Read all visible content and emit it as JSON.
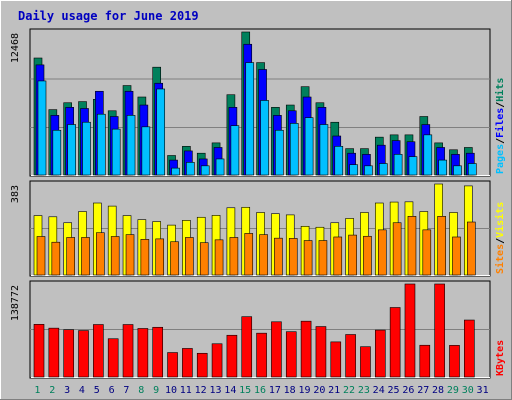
{
  "chart_data": {
    "type": "bar",
    "title": "Daily usage for June 2019",
    "colors": {
      "background": "#c0c0c0",
      "title": "#0000c0",
      "hits": "#00805c",
      "files": "#0000ff",
      "pages": "#00c0ff",
      "visits": "#ffff00",
      "sites": "#ff8000",
      "kbytes": "#ff0000",
      "weekend_day_label": "#00805c",
      "weekday_label": "#000080"
    },
    "categories": [
      "1",
      "2",
      "3",
      "4",
      "5",
      "6",
      "7",
      "8",
      "9",
      "10",
      "11",
      "12",
      "13",
      "14",
      "15",
      "16",
      "17",
      "18",
      "19",
      "20",
      "21",
      "22",
      "23",
      "24",
      "25",
      "26",
      "27",
      "28",
      "29",
      "30",
      "31"
    ],
    "weekend_days": [
      "1",
      "2",
      "8",
      "9",
      "15",
      "16",
      "22",
      "23",
      "29",
      "30"
    ],
    "panels": [
      {
        "id": "traffic",
        "ymax_label": "12468",
        "ylim": [
          0,
          12468
        ],
        "legend": [
          "Pages",
          "/",
          "Files",
          "/",
          "Hits"
        ],
        "series": [
          {
            "name": "Hits",
            "values": [
              10200,
              5700,
              6300,
              6400,
              6600,
              5600,
              7800,
              6800,
              9400,
              1700,
              2500,
              1900,
              2800,
              7000,
              12468,
              9800,
              5900,
              6100,
              7700,
              6300,
              4600,
              2300,
              2300,
              3300,
              3500,
              3500,
              5100,
              2800,
              2200,
              2400
            ]
          },
          {
            "name": "Files",
            "values": [
              9600,
              5200,
              5900,
              5800,
              7300,
              5100,
              7300,
              6100,
              8000,
              1300,
              2100,
              1400,
              2400,
              5900,
              11400,
              9200,
              5200,
              5600,
              6800,
              5900,
              3400,
              1900,
              1800,
              2600,
              3000,
              2900,
              4400,
              2400,
              1800,
              1900
            ]
          },
          {
            "name": "Pages",
            "values": [
              8200,
              3900,
              4400,
              4600,
              5300,
              4000,
              5200,
              4200,
              7500,
              600,
              1100,
              800,
              1400,
              4300,
              9800,
              6500,
              3900,
              4500,
              5000,
              4400,
              2500,
              900,
              800,
              1000,
              1800,
              1600,
              3500,
              1300,
              800,
              1000
            ]
          }
        ]
      },
      {
        "id": "visitors",
        "ymax_label": "383",
        "ylim": [
          0,
          383
        ],
        "legend": [
          "Sites",
          "/",
          "Visits"
        ],
        "series": [
          {
            "name": "Visits",
            "values": [
              250,
              245,
              220,
              267,
              303,
              290,
              250,
              233,
              225,
              210,
              230,
              243,
              251,
              283,
              285,
              263,
              258,
              253,
              205,
              201,
              220,
              238,
              263,
              303,
              307,
              308,
              267,
              383,
              263,
              375
            ]
          },
          {
            "name": "Sites",
            "values": [
              162,
              138,
              158,
              158,
              178,
              162,
              170,
              150,
              152,
              140,
              158,
              136,
              148,
              158,
              175,
              170,
              155,
              154,
              145,
              145,
              160,
              168,
              163,
              190,
              220,
              247,
              190,
              247,
              160,
              223
            ]
          }
        ]
      },
      {
        "id": "kbytes",
        "ymax_label": "138772",
        "ylim": [
          0,
          138772
        ],
        "legend": [
          "KBytes"
        ],
        "series": [
          {
            "name": "KBytes",
            "values": [
              78600,
              72900,
              70600,
              69300,
              78300,
              57100,
              78300,
              72400,
              74200,
              36500,
              42600,
              35400,
              49600,
              62300,
              90000,
              65400,
              82400,
              67600,
              83300,
              75300,
              52400,
              63400,
              45200,
              70000,
              103700,
              138772,
              47400,
              138772,
              47200,
              85000
            ]
          }
        ]
      }
    ]
  }
}
